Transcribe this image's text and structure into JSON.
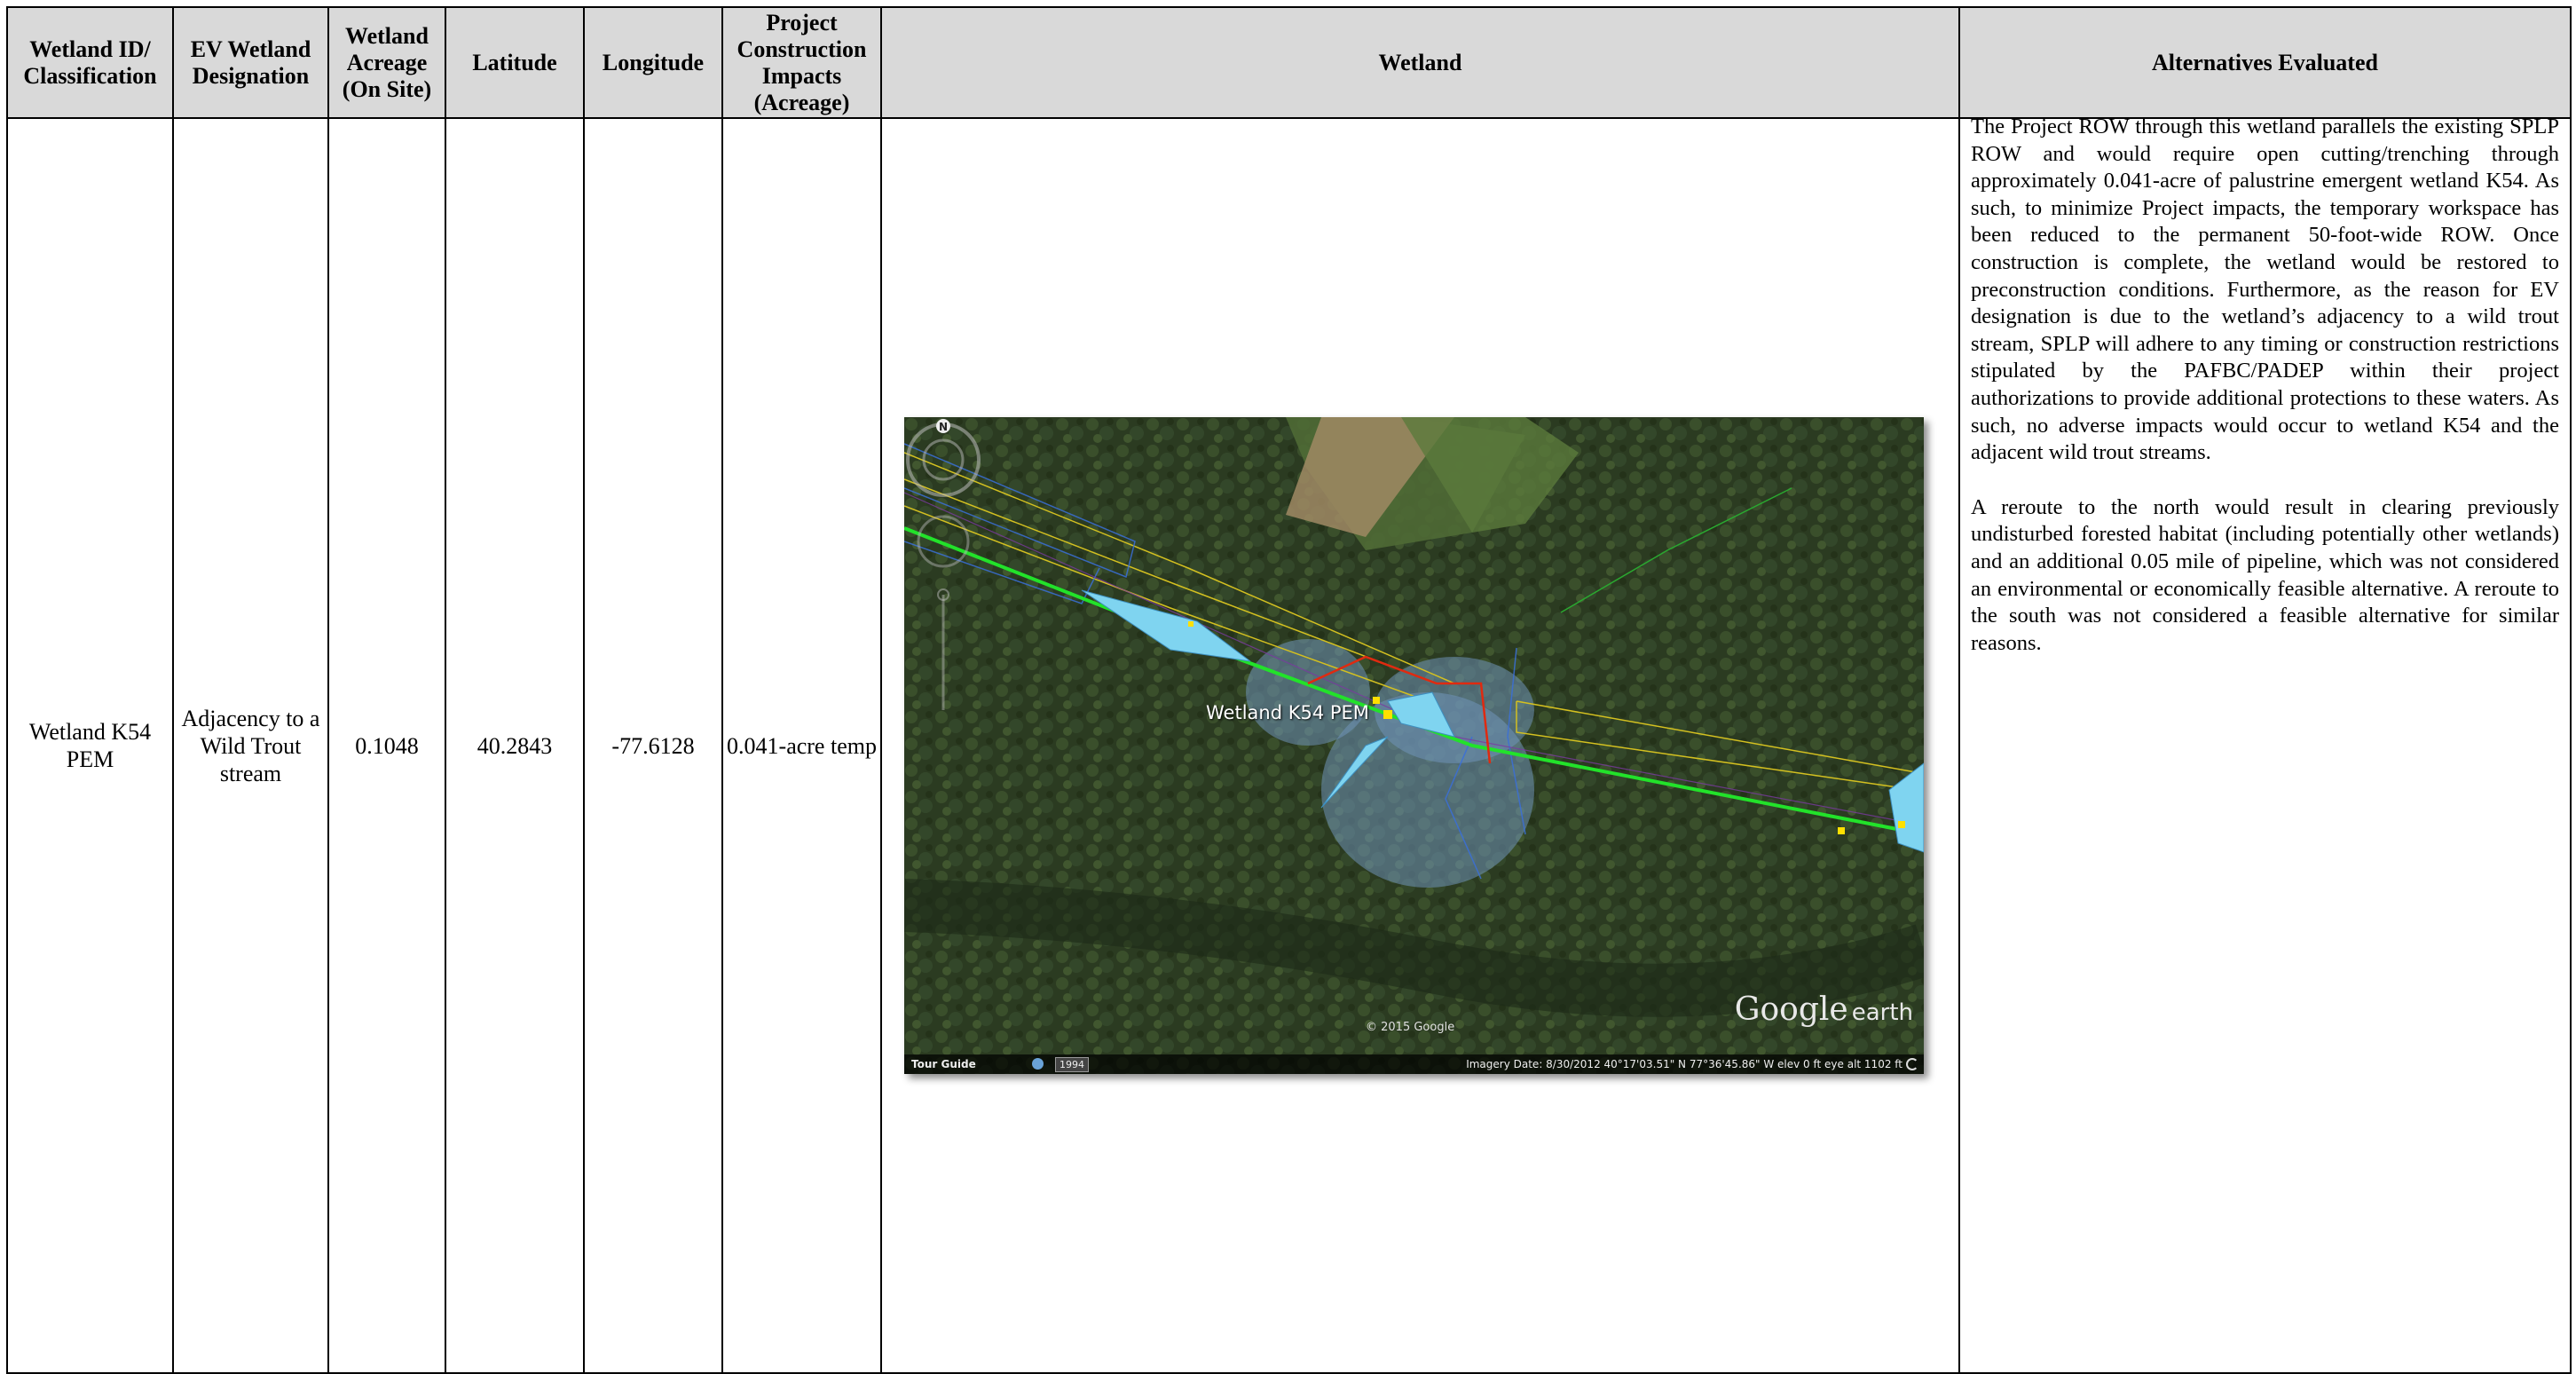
{
  "table": {
    "headers": {
      "id": "Wetland ID/ Classification",
      "ev": "EV Wetland Designation",
      "acreage": "Wetland Acreage (On Site)",
      "lat": "Latitude",
      "lon": "Longitude",
      "impacts": "Project Construction Impacts (Acreage)",
      "wetland": "Wetland",
      "alternatives": "Alternatives Evaluated"
    },
    "row": {
      "id": "Wetland K54 PEM",
      "ev": "Adjacency to a Wild Trout stream",
      "acreage": "0.1048",
      "lat": "40.2843",
      "lon": "-77.6128",
      "impacts": "0.041-acre temp",
      "alternatives_p1": "The Project ROW through this wetland parallels the existing SPLP ROW and would require open cutting/trenching through approximately 0.041-acre of palustrine emergent wetland K54. As such, to minimize Project impacts, the temporary workspace has been reduced to the permanent 50-foot-wide ROW. Once construction is complete, the wetland would be restored to preconstruction conditions. Furthermore, as the reason for EV designation is due to the wetland’s adjacency to a wild trout stream, SPLP will adhere to any timing or construction restrictions stipulated by the PAFBC/PADEP within their project authorizations to provide additional protections to these waters. As such, no adverse impacts would occur to wetland K54 and the adjacent wild trout streams.",
      "alternatives_p2": "A reroute to the north would result in clearing previously undisturbed forested habitat (including potentially other wetlands) and an additional 0.05 mile of pipeline, which was not considered an environmental or economically feasible alternative. A reroute to the south was not considered a feasible alternative for similar reasons."
    }
  },
  "map": {
    "label": "Wetland K54 PEM",
    "copyright": "© 2015 Google",
    "logo_main": "Google",
    "logo_sub": "earth",
    "tour_guide": "Tour Guide",
    "year": "1994",
    "status": "Imagery Date: 8/30/2012      40°17'03.51\" N   77°36'45.86\" W  elev    0 ft     eye alt   1102 ft",
    "compass": "N",
    "colors": {
      "forest": "#2d3d22",
      "field": "#4f6a35",
      "plowed": "#a08a64",
      "wetland_fill": "#7fd4f0",
      "buffer": "#5a7fa8",
      "pipeline": "#22e22a",
      "workspace": "#d4c020",
      "reroute": "#e02a10"
    }
  }
}
